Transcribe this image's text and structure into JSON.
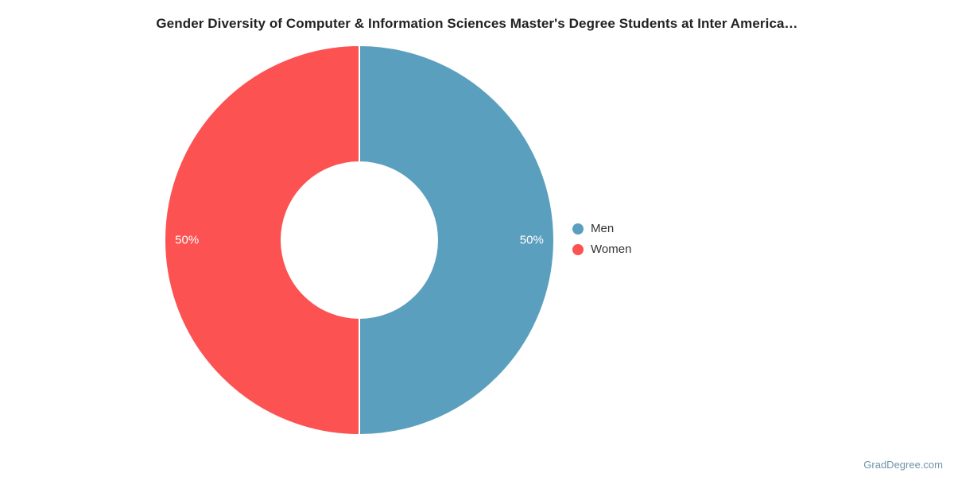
{
  "title": "Gender Diversity of Computer & Information Sciences Master's Degree Students at Inter America…",
  "watermark": "GradDegree.com",
  "chart_data": {
    "type": "pie",
    "subtype": "donut",
    "title": "Gender Diversity of Computer & Information Sciences Master's Degree Students at Inter America…",
    "categories": [
      "Men",
      "Women"
    ],
    "values": [
      50,
      50
    ],
    "unit": "percent",
    "slice_labels": [
      "50%",
      "50%"
    ],
    "colors": [
      "#5B9FBE",
      "#FC5252"
    ],
    "slice_label_color": "#FFFFFF",
    "start_angle_deg": 0,
    "direction": "clockwise",
    "inner_radius_ratio": 0.4,
    "label_radius_ratio": 0.885,
    "legend_position": "right",
    "grid": false
  },
  "legend": {
    "items": [
      {
        "label": "Men",
        "color": "#5B9FBE"
      },
      {
        "label": "Women",
        "color": "#FC5252"
      }
    ]
  }
}
